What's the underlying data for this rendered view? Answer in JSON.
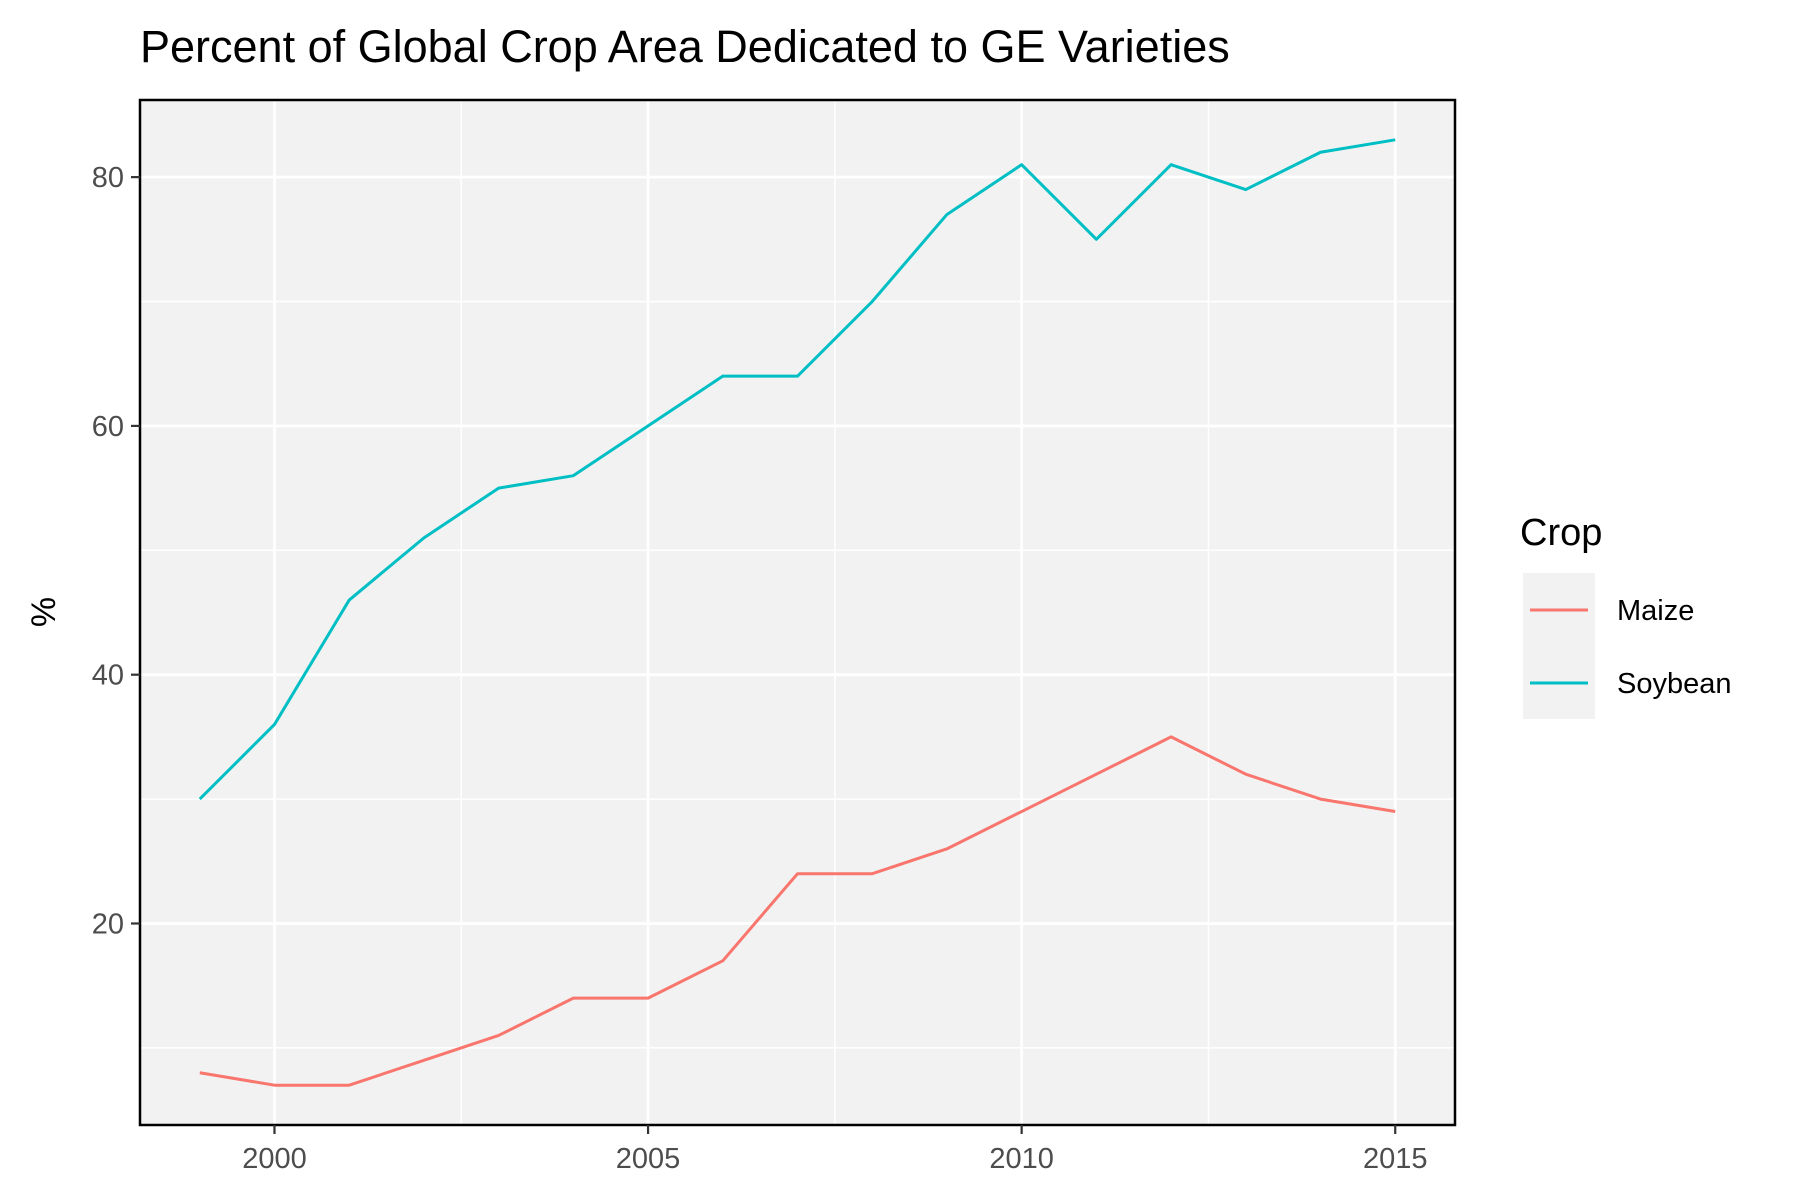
{
  "chart_data": {
    "type": "line",
    "title": "Percent of Global Crop Area Dedicated to GE Varieties",
    "xlabel": "",
    "ylabel": "%",
    "xlim": [
      1998.2,
      2015.8
    ],
    "ylim": [
      3.8,
      86.2
    ],
    "x_ticks": [
      2000,
      2005,
      2010,
      2015
    ],
    "x_tick_labels": [
      "2000",
      "2005",
      "2010",
      "2015"
    ],
    "x_minor_ticks": [
      2002.5,
      2007.5,
      2012.5
    ],
    "y_ticks": [
      20,
      40,
      60,
      80
    ],
    "y_tick_labels": [
      "20",
      "40",
      "60",
      "80"
    ],
    "y_minor_ticks": [
      10,
      30,
      50,
      70
    ],
    "grid": true,
    "panel_background": "#f2f2f2",
    "grid_color": "#ffffff",
    "x": [
      1999,
      2000,
      2001,
      2002,
      2003,
      2004,
      2005,
      2006,
      2007,
      2008,
      2009,
      2010,
      2011,
      2012,
      2013,
      2014,
      2015
    ],
    "series": [
      {
        "name": "Maize",
        "color": "#f8766d",
        "values": [
          8,
          7,
          7,
          9,
          11,
          14,
          14,
          17,
          24,
          24,
          26,
          29,
          32,
          35,
          32,
          30,
          29
        ]
      },
      {
        "name": "Soybean",
        "color": "#00bfc4",
        "values": [
          30,
          36,
          46,
          51,
          55,
          56,
          60,
          64,
          64,
          70,
          77,
          81,
          75,
          81,
          79,
          82,
          83
        ]
      }
    ],
    "legend": {
      "title": "Crop",
      "placement": "right"
    }
  }
}
